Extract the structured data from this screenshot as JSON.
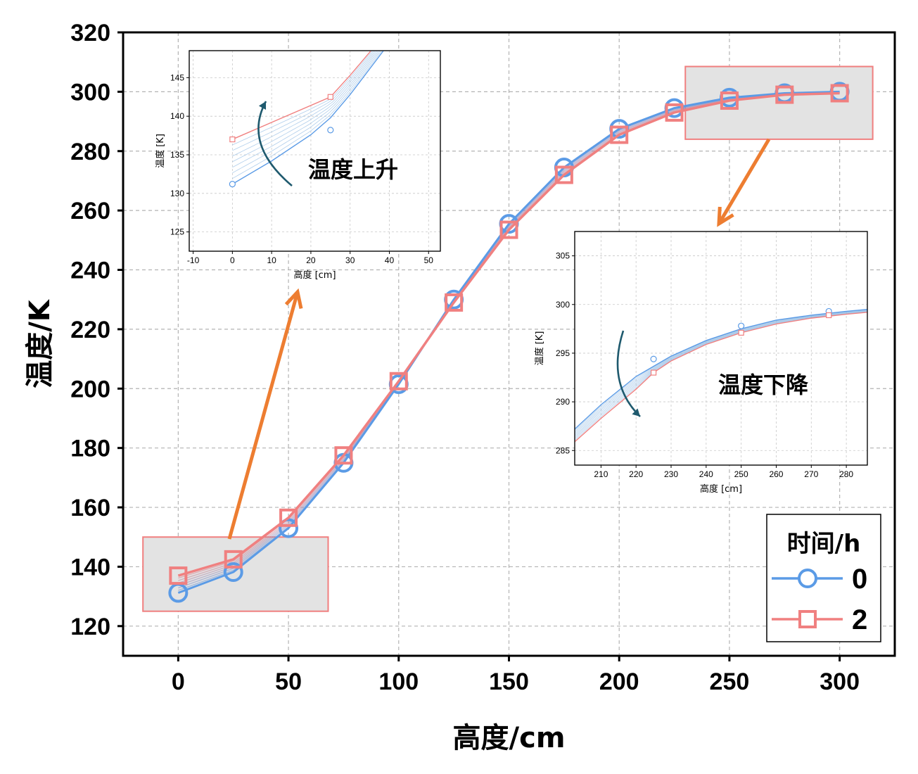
{
  "chart_data": [
    {
      "type": "line",
      "role": "main",
      "xlabel": "高度/cm",
      "ylabel": "温度/K",
      "xlim": [
        -25,
        325
      ],
      "ylim": [
        110,
        320
      ],
      "xticks": [
        0,
        50,
        100,
        150,
        200,
        250,
        300
      ],
      "yticks": [
        120,
        140,
        160,
        180,
        200,
        220,
        240,
        260,
        280,
        300,
        320
      ],
      "grid": true,
      "legend": {
        "title": "时间/h",
        "position": "bottom-right"
      },
      "series": [
        {
          "name": "0",
          "color": "#5B9BE6",
          "marker": "circle",
          "x": [
            0,
            25,
            50,
            75,
            100,
            125,
            150,
            175,
            200,
            225,
            250,
            275,
            300
          ],
          "y": [
            131.2,
            138.2,
            153,
            175,
            201.5,
            230,
            255.5,
            274.5,
            287.5,
            294.5,
            298,
            299.5,
            300
          ]
        },
        {
          "name": "2",
          "color": "#F08080",
          "marker": "square",
          "x": [
            0,
            25,
            50,
            75,
            100,
            125,
            150,
            175,
            200,
            225,
            250,
            275,
            300
          ],
          "y": [
            137,
            142.5,
            156.5,
            177.5,
            202.5,
            229,
            253.5,
            272,
            285.5,
            293,
            297,
            299,
            299.5
          ]
        }
      ]
    },
    {
      "type": "line",
      "role": "inset-top-left",
      "xlabel": "高度 [cm]",
      "ylabel": "温度 [K]",
      "xlim": [
        -11,
        53
      ],
      "ylim": [
        122.5,
        148.5
      ],
      "xticks": [
        -10,
        0,
        10,
        20,
        30,
        40,
        50
      ],
      "yticks": [
        125,
        130,
        135,
        140,
        145
      ],
      "grid": true,
      "annotation": "温度上升",
      "series": [
        {
          "name": "0",
          "color": "#5B9BE6",
          "marker": "circle",
          "x": [
            0,
            25
          ],
          "y": [
            131.2,
            138.2
          ],
          "curve_x": [
            0,
            10,
            20,
            25,
            30,
            40,
            42.5
          ],
          "curve_y": [
            131.2,
            134.2,
            137.6,
            139.8,
            142.8,
            149.5,
            151.5
          ]
        },
        {
          "name": "2",
          "color": "#F08080",
          "marker": "square",
          "x": [
            0,
            25
          ],
          "y": [
            137,
            142.5
          ],
          "curve_x": [
            0,
            25,
            30,
            35,
            39.5
          ],
          "curve_y": [
            137,
            142.5,
            145.3,
            148.3,
            151.5
          ]
        }
      ]
    },
    {
      "type": "line",
      "role": "inset-right",
      "xlabel": "高度 [cm]",
      "ylabel": "温度 [K]",
      "xlim": [
        202.5,
        286
      ],
      "ylim": [
        283.5,
        307.5
      ],
      "xticks": [
        210,
        220,
        230,
        240,
        250,
        260,
        270,
        280
      ],
      "yticks": [
        285,
        290,
        295,
        300,
        305
      ],
      "grid": true,
      "annotation": "温度下降",
      "series": [
        {
          "name": "0",
          "color": "#5B9BE6",
          "marker": "circle",
          "x": [
            225,
            250,
            275
          ],
          "y": [
            294.4,
            297.8,
            299.3
          ],
          "curve_x": [
            202.5,
            210,
            220,
            230,
            240,
            250,
            260,
            270,
            280,
            286
          ],
          "curve_y": [
            287.2,
            289.7,
            292.6,
            294.7,
            296.3,
            297.5,
            298.4,
            298.9,
            299.3,
            299.5
          ]
        },
        {
          "name": "2",
          "color": "#F08080",
          "marker": "square",
          "x": [
            225,
            250,
            275
          ],
          "y": [
            293.0,
            297.1,
            298.9
          ],
          "curve_x": [
            202.5,
            210,
            220,
            225,
            230,
            240,
            250,
            260,
            270,
            280,
            286
          ],
          "curve_y": [
            285.9,
            288.3,
            291.3,
            293.0,
            294.2,
            295.9,
            297.1,
            298.0,
            298.6,
            299.0,
            299.2
          ]
        }
      ]
    }
  ]
}
